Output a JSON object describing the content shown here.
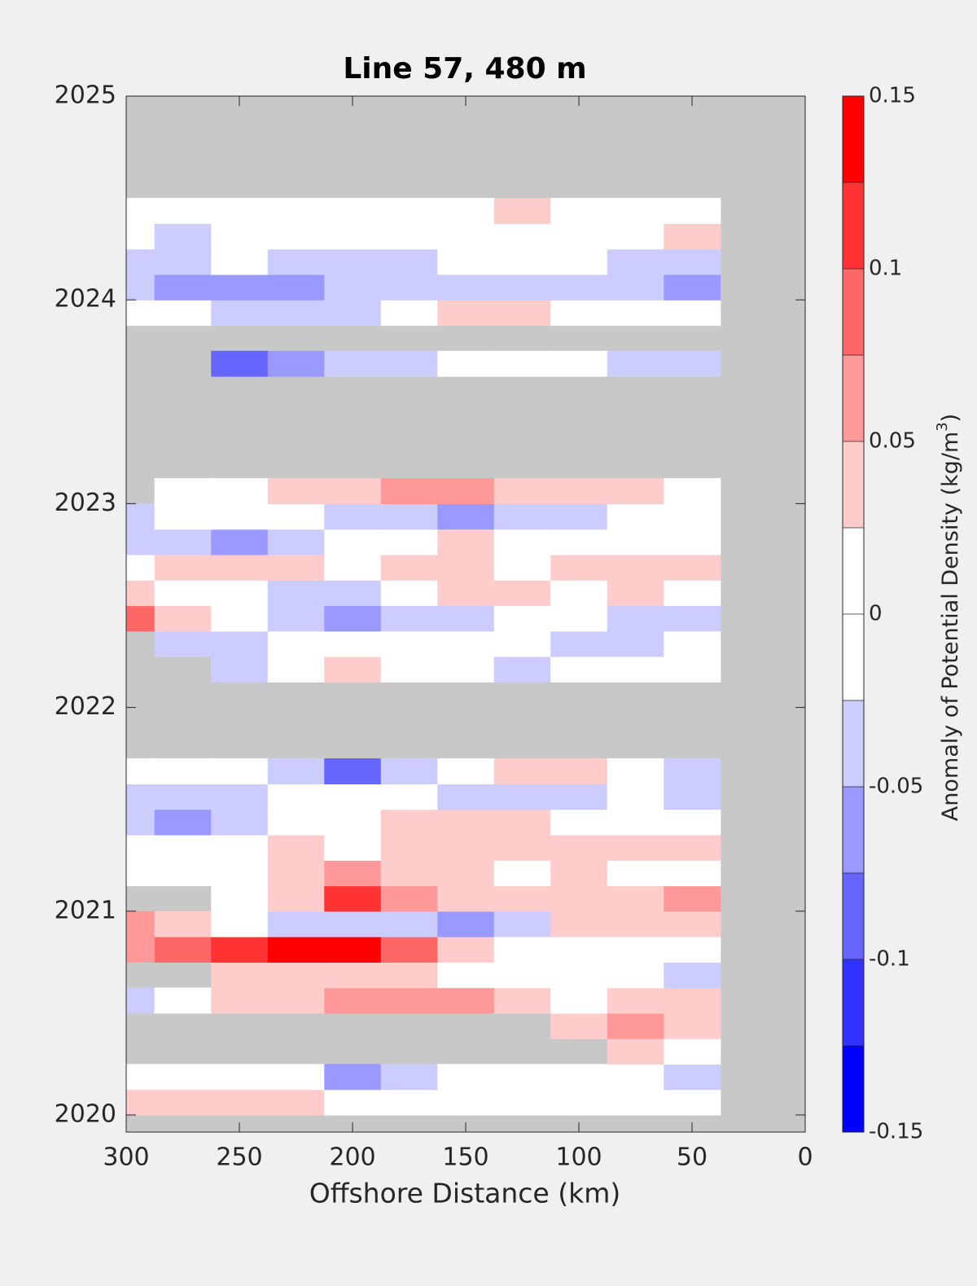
{
  "chart_data": {
    "type": "contourf",
    "title": "Line 57, 480 m",
    "x_label": "Offshore Distance (km)",
    "colorbar_label": {
      "text": "Anomaly of Potential Density (kg/m",
      "sup": "3",
      "end": ")"
    },
    "xlim": [
      300,
      0
    ],
    "xticks": [
      300,
      250,
      200,
      150,
      100,
      50,
      0
    ],
    "ylim": [
      2019.916,
      2025
    ],
    "yticks": [
      2020,
      2021,
      2022,
      2023,
      2024,
      2025
    ],
    "missing_color": "#c8c8c8",
    "levels": [
      -0.15,
      -0.125,
      -0.1,
      -0.075,
      -0.05,
      -0.025,
      0,
      0.025,
      0.05,
      0.075,
      0.1,
      0.125,
      0.15
    ],
    "colors": [
      "#0000ff",
      "#3333ff",
      "#6666ff",
      "#9999ff",
      "#ccccff",
      "#ffffff",
      "#ffffff",
      "#ffcccc",
      "#ff9999",
      "#ff6666",
      "#ff3333",
      "#ff0000"
    ],
    "cticks": [
      -0.15,
      -0.1,
      -0.05,
      0,
      0.05,
      0.1,
      0.15
    ],
    "x": [
      300,
      275,
      250,
      225,
      200,
      175,
      150,
      125,
      100,
      75,
      50
    ],
    "y": [
      2020.0625,
      2020.1875,
      2020.3125,
      2020.4375,
      2020.5625,
      2020.6875,
      2020.8125,
      2020.9375,
      2021.0625,
      2021.1875,
      2021.3125,
      2021.4375,
      2021.5625,
      2021.6875,
      2021.8125,
      2021.9375,
      2022.0625,
      2022.1875,
      2022.3125,
      2022.4375,
      2022.5625,
      2022.6875,
      2022.8125,
      2022.9375,
      2023.0625,
      2023.1875,
      2023.3125,
      2023.4375,
      2023.5625,
      2023.6875,
      2023.8125,
      2023.9375,
      2024.0625,
      2024.1875,
      2024.3125,
      2024.4375
    ],
    "z": [
      [
        0.03,
        0.04,
        0.03,
        0.03,
        0,
        0,
        0,
        0,
        0,
        0,
        0
      ],
      [
        0,
        0,
        0,
        0,
        -0.06,
        -0.03,
        0,
        0,
        0,
        0,
        -0.03
      ],
      [
        null,
        null,
        null,
        null,
        null,
        null,
        null,
        null,
        null,
        0.03,
        0
      ],
      [
        null,
        null,
        null,
        null,
        null,
        null,
        null,
        null,
        0.03,
        0.06,
        0.03
      ],
      [
        -0.03,
        0,
        0.03,
        0.04,
        0.06,
        0.06,
        0.07,
        0.04,
        0,
        0.04,
        0.03
      ],
      [
        null,
        null,
        0.04,
        0.04,
        0.03,
        0.03,
        0,
        0,
        0,
        0,
        -0.03
      ],
      [
        0.06,
        0.09,
        0.12,
        0.14,
        0.15,
        0.08,
        0.03,
        0,
        0,
        0,
        0
      ],
      [
        0.06,
        0.03,
        0,
        -0.03,
        -0.03,
        -0.03,
        -0.06,
        -0.03,
        0.03,
        0.04,
        0.04
      ],
      [
        null,
        null,
        0,
        0.04,
        0.12,
        0.07,
        0.04,
        0.03,
        0.04,
        0.04,
        0.06
      ],
      [
        0,
        0,
        0,
        0.04,
        0.06,
        0.04,
        0.03,
        0,
        0.03,
        0,
        0
      ],
      [
        0,
        0,
        0,
        0.03,
        0,
        0.03,
        0.04,
        0.04,
        0.03,
        0.03,
        0.03
      ],
      [
        -0.03,
        -0.06,
        -0.03,
        0,
        0,
        0.03,
        0.03,
        0.03,
        0,
        0,
        0
      ],
      [
        -0.03,
        -0.04,
        -0.03,
        0,
        0,
        0,
        -0.03,
        -0.03,
        -0.03,
        0,
        -0.04
      ],
      [
        0,
        0,
        0,
        -0.04,
        -0.08,
        -0.03,
        0,
        0.03,
        0.03,
        0,
        -0.03
      ],
      [
        null,
        null,
        null,
        null,
        null,
        null,
        null,
        null,
        null,
        null,
        null
      ],
      [
        null,
        null,
        null,
        null,
        null,
        null,
        null,
        null,
        null,
        null,
        null
      ],
      [
        null,
        null,
        null,
        null,
        null,
        null,
        null,
        null,
        null,
        null,
        null
      ],
      [
        null,
        null,
        -0.03,
        0,
        0.04,
        0,
        0,
        -0.03,
        0,
        0,
        0
      ],
      [
        null,
        -0.03,
        -0.03,
        0,
        0,
        0,
        0,
        0,
        -0.03,
        -0.03,
        0
      ],
      [
        0.08,
        0.03,
        0,
        -0.03,
        -0.06,
        -0.03,
        -0.04,
        0,
        0,
        -0.03,
        -0.03
      ],
      [
        0.03,
        0,
        0,
        -0.03,
        -0.03,
        0,
        0.03,
        0.03,
        0,
        0.03,
        0
      ],
      [
        0,
        0.03,
        0.03,
        0.03,
        0,
        0.03,
        0.03,
        0,
        0.03,
        0.04,
        0.03
      ],
      [
        -0.03,
        -0.04,
        -0.06,
        -0.04,
        0,
        0,
        0.03,
        0,
        0,
        0,
        0
      ],
      [
        -0.03,
        0,
        0,
        0,
        -0.03,
        -0.03,
        -0.06,
        -0.04,
        -0.03,
        0,
        0
      ],
      [
        null,
        0,
        0,
        0.03,
        0.03,
        0.05,
        0.06,
        0.04,
        0.03,
        0.03,
        0
      ],
      [
        null,
        null,
        null,
        null,
        null,
        null,
        null,
        null,
        null,
        null,
        null
      ],
      [
        null,
        null,
        null,
        null,
        null,
        null,
        null,
        null,
        null,
        null,
        null
      ],
      [
        null,
        null,
        null,
        null,
        null,
        null,
        null,
        null,
        null,
        null,
        null
      ],
      [
        null,
        null,
        null,
        null,
        null,
        null,
        null,
        null,
        null,
        null,
        null
      ],
      [
        null,
        null,
        -0.08,
        -0.06,
        -0.03,
        -0.03,
        0,
        0,
        0,
        -0.03,
        -0.03
      ],
      [
        null,
        null,
        null,
        null,
        null,
        null,
        null,
        null,
        null,
        null,
        null
      ],
      [
        0,
        0,
        -0.03,
        -0.03,
        -0.03,
        0,
        0.03,
        0.03,
        0,
        0,
        0
      ],
      [
        -0.04,
        -0.06,
        -0.06,
        -0.06,
        -0.04,
        -0.04,
        -0.04,
        -0.03,
        -0.03,
        -0.03,
        -0.06
      ],
      [
        -0.03,
        -0.03,
        0,
        -0.03,
        -0.03,
        -0.03,
        0,
        0,
        0,
        -0.03,
        -0.03
      ],
      [
        0,
        -0.03,
        0,
        0,
        0,
        0,
        0,
        0,
        0,
        0,
        0.03
      ],
      [
        0,
        0,
        0,
        0,
        0,
        0,
        0,
        0.03,
        0,
        0,
        0
      ]
    ]
  }
}
